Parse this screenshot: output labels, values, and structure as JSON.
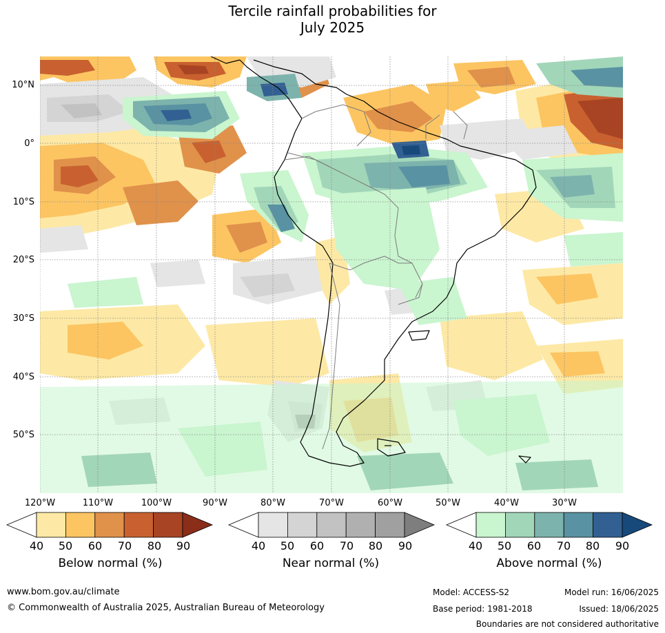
{
  "title": {
    "line1": "Tercile rainfall probabilities for",
    "line2": "July 2025"
  },
  "map": {
    "lat_labels": [
      "10°N",
      "0°",
      "10°S",
      "20°S",
      "30°S",
      "40°S",
      "50°S"
    ],
    "lon_labels": [
      "120°W",
      "110°W",
      "100°W",
      "90°W",
      "80°W",
      "70°W",
      "60°W",
      "50°W",
      "40°W",
      "30°W"
    ]
  },
  "colorbars": [
    {
      "name": "below",
      "label": "Below normal (%)",
      "ticks": [
        "40",
        "50",
        "60",
        "70",
        "80",
        "90"
      ],
      "colors": [
        "#ffffff",
        "#fde9a5",
        "#fcc562",
        "#e0914a",
        "#c8612f",
        "#a84423",
        "#8a2d19"
      ]
    },
    {
      "name": "near",
      "label": "Near normal (%)",
      "ticks": [
        "40",
        "50",
        "60",
        "70",
        "80",
        "90"
      ],
      "colors": [
        "#ffffff",
        "#e5e5e5",
        "#d4d4d4",
        "#c2c2c2",
        "#b0b0b0",
        "#a0a0a0",
        "#7e7e7e"
      ]
    },
    {
      "name": "above",
      "label": "Above normal (%)",
      "ticks": [
        "40",
        "50",
        "60",
        "70",
        "80",
        "90"
      ],
      "colors": [
        "#ffffff",
        "#c9f5cf",
        "#a2d6b9",
        "#7db3ad",
        "#5992a2",
        "#326092",
        "#17497b"
      ]
    }
  ],
  "footer": {
    "website": "www.bom.gov.au/climate",
    "copyright": "© Commonwealth of Australia 2025, Australian Bureau of Meteorology",
    "model": "Model: ACCESS-S2",
    "base_period": "Base period: 1981-2018",
    "model_run": "Model run: 16/06/2025",
    "issued": "Issued: 18/06/2025",
    "disclaimer": "Boundaries are not considered authoritative"
  }
}
